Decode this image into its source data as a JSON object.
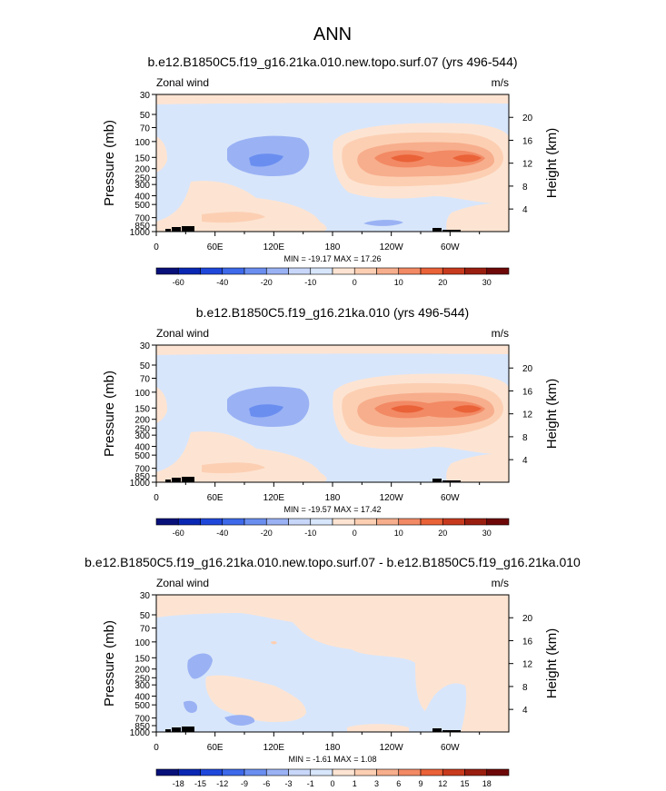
{
  "figure": {
    "title": "ANN"
  },
  "colors": {
    "abs": [
      "#08107a",
      "#0a27b3",
      "#1f48db",
      "#3d69ea",
      "#6a8ef0",
      "#9ab2f4",
      "#c8d7f9",
      "#d8e6fb",
      "#fde4d2",
      "#fccfb3",
      "#f7ae8c",
      "#f28a65",
      "#ea6238",
      "#c83a1d",
      "#9a1e10",
      "#6e0808"
    ],
    "diff": [
      "#08107a",
      "#0a27b3",
      "#1f48db",
      "#3d69ea",
      "#6a8ef0",
      "#9ab2f4",
      "#c8d7f9",
      "#d8e6fb",
      "#fde4d2",
      "#fccfb3",
      "#f7ae8c",
      "#f28a65",
      "#ea6238",
      "#c83a1d",
      "#9a1e10",
      "#6e0808"
    ],
    "topo": "#000000"
  },
  "chart_data": [
    {
      "type": "heatmap",
      "title": "b.e12.B1850C5.f19_g16.21ka.010.new.topo.surf.07 (yrs 496-544)",
      "left_label": "Zonal wind",
      "right_label": "m/s",
      "ylabel": "Pressure (mb)",
      "ylabel_right": "Height (km)",
      "x_ticks": [
        "0",
        "60E",
        "120E",
        "180",
        "120W",
        "60W"
      ],
      "y_ticks": [
        "30",
        "50",
        "70",
        "100",
        "150",
        "200",
        "250",
        "300",
        "400",
        "500",
        "700",
        "850",
        "1000"
      ],
      "height_ticks": [
        "4",
        "8",
        "12",
        "16",
        "20"
      ],
      "stats": "MIN = -19.17   MAX =  17.26",
      "colorbar_levels": [
        "-60",
        "-40",
        "-20",
        "-10",
        "0",
        "10",
        "20",
        "30"
      ],
      "min": -19.17,
      "max": 17.26
    },
    {
      "type": "heatmap",
      "title": "b.e12.B1850C5.f19_g16.21ka.010 (yrs 496-544)",
      "left_label": "Zonal wind",
      "right_label": "m/s",
      "ylabel": "Pressure (mb)",
      "ylabel_right": "Height (km)",
      "x_ticks": [
        "0",
        "60E",
        "120E",
        "180",
        "120W",
        "60W"
      ],
      "y_ticks": [
        "30",
        "50",
        "70",
        "100",
        "150",
        "200",
        "250",
        "300",
        "400",
        "500",
        "700",
        "850",
        "1000"
      ],
      "height_ticks": [
        "4",
        "8",
        "12",
        "16",
        "20"
      ],
      "stats": "MIN = -19.57   MAX =  17.42",
      "colorbar_levels": [
        "-60",
        "-40",
        "-20",
        "-10",
        "0",
        "10",
        "20",
        "30"
      ],
      "min": -19.57,
      "max": 17.42
    },
    {
      "type": "heatmap",
      "title": "b.e12.B1850C5.f19_g16.21ka.010.new.topo.surf.07 - b.e12.B1850C5.f19_g16.21ka.010",
      "left_label": "Zonal wind",
      "right_label": "m/s",
      "ylabel": "Pressure (mb)",
      "ylabel_right": "Height (km)",
      "x_ticks": [
        "0",
        "60E",
        "120E",
        "180",
        "120W",
        "60W"
      ],
      "y_ticks": [
        "30",
        "50",
        "70",
        "100",
        "150",
        "200",
        "250",
        "300",
        "400",
        "500",
        "700",
        "850",
        "1000"
      ],
      "height_ticks": [
        "4",
        "8",
        "12",
        "16",
        "20"
      ],
      "stats": "MIN =  -1.61   MAX =   1.08",
      "colorbar_levels": [
        "-18",
        "-15",
        "-12",
        "-9",
        "-6",
        "-3",
        "-1",
        "0",
        "1",
        "3",
        "6",
        "9",
        "12",
        "15",
        "18"
      ],
      "min": -1.61,
      "max": 1.08
    }
  ]
}
